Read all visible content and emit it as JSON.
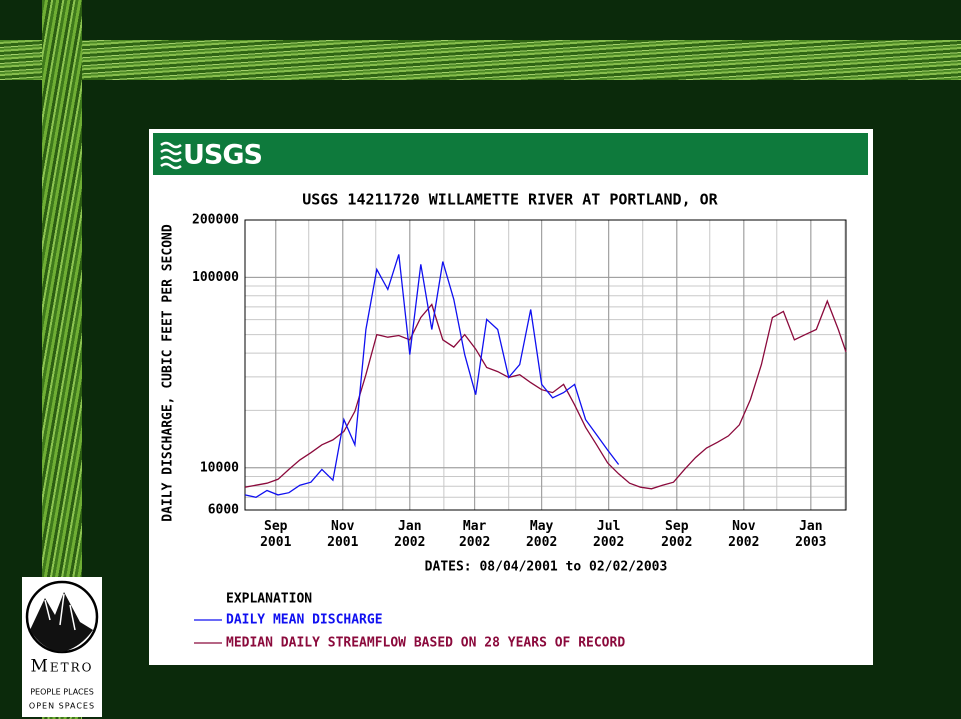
{
  "header": {
    "agency": "USGS"
  },
  "logo": {
    "name": "Metro",
    "tagline": [
      "PEOPLE PLACES",
      "OPEN SPACES"
    ]
  },
  "chart_data": {
    "type": "line",
    "title": "USGS 14211720 WILLAMETTE RIVER AT PORTLAND, OR",
    "y_label": "DAILY DISCHARGE, CUBIC FEET PER SECOND",
    "x_label": "DATES: 08/04/2001 to 02/02/2003",
    "legend_title": "EXPLANATION",
    "log_y": true,
    "grid": true,
    "xlim": [
      "2001-08-04",
      "2003-02-02"
    ],
    "xticks": [
      {
        "value": "2001-09-01",
        "label": "Sep 2001"
      },
      {
        "value": "2001-11-01",
        "label": "Nov 2001"
      },
      {
        "value": "2002-01-01",
        "label": "Jan 2002"
      },
      {
        "value": "2002-03-01",
        "label": "Mar 2002"
      },
      {
        "value": "2002-05-01",
        "label": "May 2002"
      },
      {
        "value": "2002-07-01",
        "label": "Jul 2002"
      },
      {
        "value": "2002-09-01",
        "label": "Sep 2002"
      },
      {
        "value": "2002-11-01",
        "label": "Nov 2002"
      },
      {
        "value": "2003-01-01",
        "label": "Jan 2003"
      }
    ],
    "ylim": [
      6000,
      200000
    ],
    "yticks": [
      6000,
      10000,
      100000,
      200000
    ],
    "x": [
      "2001-08-04",
      "2001-08-14",
      "2001-08-24",
      "2001-09-03",
      "2001-09-13",
      "2001-09-23",
      "2001-10-03",
      "2001-10-13",
      "2001-10-23",
      "2001-11-02",
      "2001-11-12",
      "2001-11-22",
      "2001-12-02",
      "2001-12-12",
      "2001-12-22",
      "2002-01-01",
      "2002-01-11",
      "2002-01-21",
      "2002-01-31",
      "2002-02-10",
      "2002-02-20",
      "2002-03-02",
      "2002-03-12",
      "2002-03-22",
      "2002-04-01",
      "2002-04-11",
      "2002-04-21",
      "2002-05-01",
      "2002-05-11",
      "2002-05-21",
      "2002-05-31",
      "2002-06-10",
      "2002-06-20",
      "2002-06-30",
      "2002-07-10",
      "2002-07-20",
      "2002-07-30",
      "2002-08-09",
      "2002-08-19",
      "2002-08-29",
      "2002-09-08",
      "2002-09-18",
      "2002-09-28",
      "2002-10-08",
      "2002-10-18",
      "2002-10-28",
      "2002-11-07",
      "2002-11-17",
      "2002-11-27",
      "2002-12-07",
      "2002-12-17",
      "2002-12-27",
      "2003-01-06",
      "2003-01-16",
      "2003-01-26",
      "2003-02-02"
    ],
    "series": [
      {
        "name": "DAILY MEAN DISCHARGE",
        "color": "#1010f0",
        "values": [
          7200,
          7000,
          7600,
          7200,
          7400,
          8100,
          8400,
          9800,
          8600,
          17900,
          13200,
          53200,
          110000,
          86400,
          132000,
          39300,
          117000,
          53200,
          121000,
          76600,
          39300,
          24200,
          60100,
          53200,
          29800,
          34800,
          67800,
          27400,
          23300,
          24800,
          27400,
          17900,
          14900,
          12400,
          10400,
          null,
          null,
          null,
          null,
          null,
          null,
          null,
          null,
          null,
          null,
          null,
          null,
          null,
          null,
          null,
          null,
          null,
          null,
          null,
          null,
          null
        ]
      },
      {
        "name": "MEDIAN DAILY STREAMFLOW BASED ON 28 YEARS OF RECORD",
        "color": "#8b0a3c",
        "values": [
          7900,
          8100,
          8300,
          8700,
          9800,
          11000,
          12000,
          13200,
          14000,
          15500,
          19800,
          30800,
          50000,
          48500,
          49500,
          47000,
          61500,
          72000,
          47000,
          43000,
          50000,
          42000,
          33600,
          32000,
          29800,
          30800,
          28000,
          25700,
          24800,
          27400,
          21400,
          16300,
          13200,
          10600,
          9300,
          8300,
          7900,
          7750,
          8100,
          8400,
          9800,
          11300,
          12700,
          13600,
          14700,
          16800,
          22800,
          34800,
          61500,
          66200,
          47000,
          50000,
          53200,
          75000,
          53200,
          40600
        ]
      }
    ]
  }
}
